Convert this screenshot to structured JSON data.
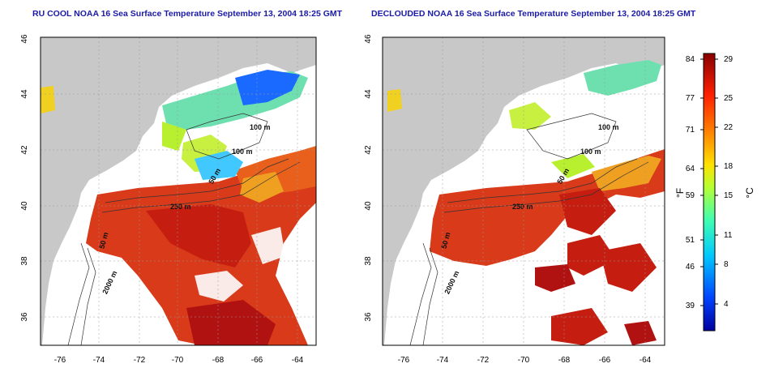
{
  "panels": [
    {
      "id": "left",
      "title": "RU COOL NOAA 16 Sea Surface Temperature September 13, 2004 18:25 GMT"
    },
    {
      "id": "right",
      "title": "DECLOUDED NOAA 16 Sea Surface Temperature September 13, 2004 18:25 GMT"
    }
  ],
  "axes": {
    "lon_ticks": [
      "-76",
      "-74",
      "-72",
      "-70",
      "-68",
      "-66",
      "-64"
    ],
    "lat_ticks": [
      "46",
      "44",
      "42",
      "40",
      "38",
      "36"
    ]
  },
  "depth_labels": {
    "left": [
      "100 m",
      "100 m",
      "50 m",
      "250 m",
      "50 m",
      "2000 m"
    ],
    "right": [
      "100 m",
      "100 m",
      "50 m",
      "250 m",
      "50 m",
      "2000 m"
    ]
  },
  "colorbar": {
    "f_unit": "°F",
    "c_unit": "°C",
    "f_ticks": [
      "84",
      "77",
      "71",
      "64",
      "59",
      "51",
      "46",
      "39"
    ],
    "c_ticks": [
      "29",
      "25",
      "22",
      "18",
      "15",
      "11",
      "8",
      "4"
    ]
  },
  "colors": {
    "land": "#c8c8c8",
    "cloud": "#ffffff",
    "warm": "#d42a10",
    "hot": "#b0120e",
    "title": "#1a1aa6"
  }
}
